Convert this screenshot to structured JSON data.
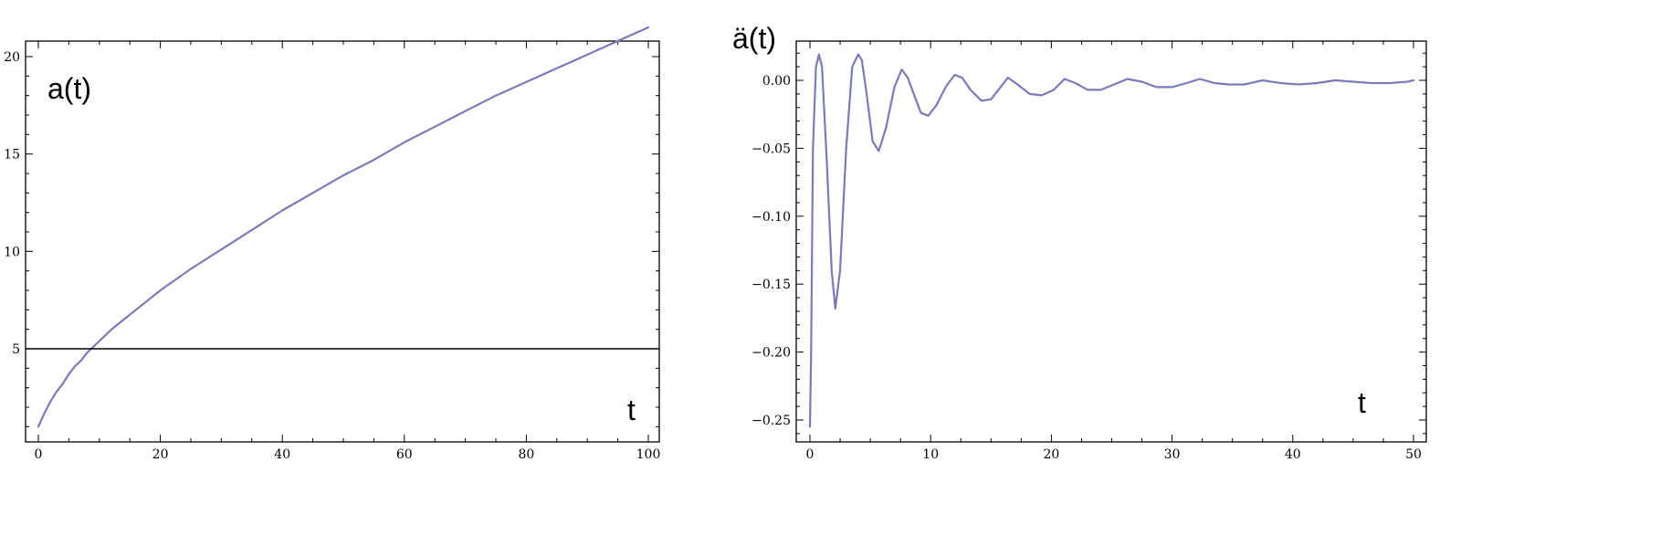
{
  "chart_data": [
    {
      "type": "line",
      "title": "",
      "inplot_label": "a(t)",
      "xlabel": "t",
      "ylabel": "",
      "xlim": [
        0,
        100
      ],
      "ylim": [
        0,
        20
      ],
      "x_ticks": [
        0,
        20,
        40,
        60,
        80,
        100
      ],
      "y_ticks": [
        5,
        10,
        15,
        20
      ],
      "grid": false,
      "series": [
        {
          "x": [
            0,
            1,
            2,
            3,
            4,
            5,
            6,
            7,
            8,
            9,
            10,
            12,
            14,
            16,
            18,
            20,
            25,
            30,
            35,
            40,
            45,
            50,
            55,
            60,
            65,
            70,
            75,
            80,
            85,
            90,
            95,
            100
          ],
          "y": [
            1.0,
            1.7,
            2.3,
            2.8,
            3.2,
            3.7,
            4.1,
            4.4,
            4.8,
            5.1,
            5.4,
            6.0,
            6.5,
            7.0,
            7.5,
            8.0,
            9.1,
            10.1,
            11.1,
            12.1,
            13.0,
            13.9,
            14.7,
            15.6,
            16.4,
            17.2,
            18.0,
            18.7,
            19.4,
            20.1,
            20.8,
            21.5
          ]
        },
        {
          "x": [
            0,
            100
          ],
          "y": [
            5,
            5
          ]
        }
      ]
    },
    {
      "type": "line",
      "title": "",
      "inplot_label": "ä(t)",
      "xlabel": "t",
      "ylabel": "",
      "xlim": [
        0,
        50
      ],
      "ylim": [
        -0.26,
        0.02
      ],
      "x_ticks": [
        0,
        10,
        20,
        30,
        40,
        50
      ],
      "y_ticks": [
        0.0,
        -0.05,
        -0.1,
        -0.15,
        -0.2,
        -0.25
      ],
      "y_tick_labels": [
        "0.00",
        "−0.05",
        "−0.10",
        "−0.15",
        "−0.20",
        "−0.25"
      ],
      "grid": false,
      "series": [
        {
          "x": [
            0,
            0.1,
            0.25,
            0.5,
            0.75,
            1.0,
            1.4,
            1.8,
            2.1,
            2.5,
            3.0,
            3.5,
            4.0,
            4.3,
            4.7,
            5.2,
            5.7,
            6.3,
            7.0,
            7.6,
            8.1,
            8.6,
            9.2,
            9.8,
            10.5,
            11.3,
            12.0,
            12.6,
            13.3,
            14.2,
            15.0,
            15.7,
            16.4,
            17.2,
            18.2,
            19.2,
            20.2,
            21.1,
            22.0,
            23.0,
            24.1,
            25.2,
            26.3,
            27.5,
            28.7,
            30.0,
            31.2,
            32.3,
            33.5,
            34.7,
            36.0,
            37.5,
            39.0,
            40.5,
            42.0,
            43.5,
            45.0,
            46.5,
            48.0,
            49.5,
            50.0
          ],
          "y": [
            -0.255,
            -0.2,
            -0.05,
            0.01,
            0.019,
            0.01,
            -0.06,
            -0.14,
            -0.168,
            -0.14,
            -0.05,
            0.01,
            0.019,
            0.015,
            -0.01,
            -0.045,
            -0.052,
            -0.035,
            -0.005,
            0.008,
            0.002,
            -0.01,
            -0.024,
            -0.026,
            -0.018,
            -0.004,
            0.004,
            0.002,
            -0.007,
            -0.015,
            -0.014,
            -0.006,
            0.002,
            -0.003,
            -0.01,
            -0.011,
            -0.007,
            0.001,
            -0.002,
            -0.007,
            -0.007,
            -0.003,
            0.001,
            -0.001,
            -0.005,
            -0.005,
            -0.002,
            0.001,
            -0.002,
            -0.003,
            -0.003,
            0.0,
            -0.002,
            -0.003,
            -0.002,
            0.0,
            -0.001,
            -0.002,
            -0.002,
            -0.001,
            0.0
          ]
        }
      ]
    }
  ]
}
